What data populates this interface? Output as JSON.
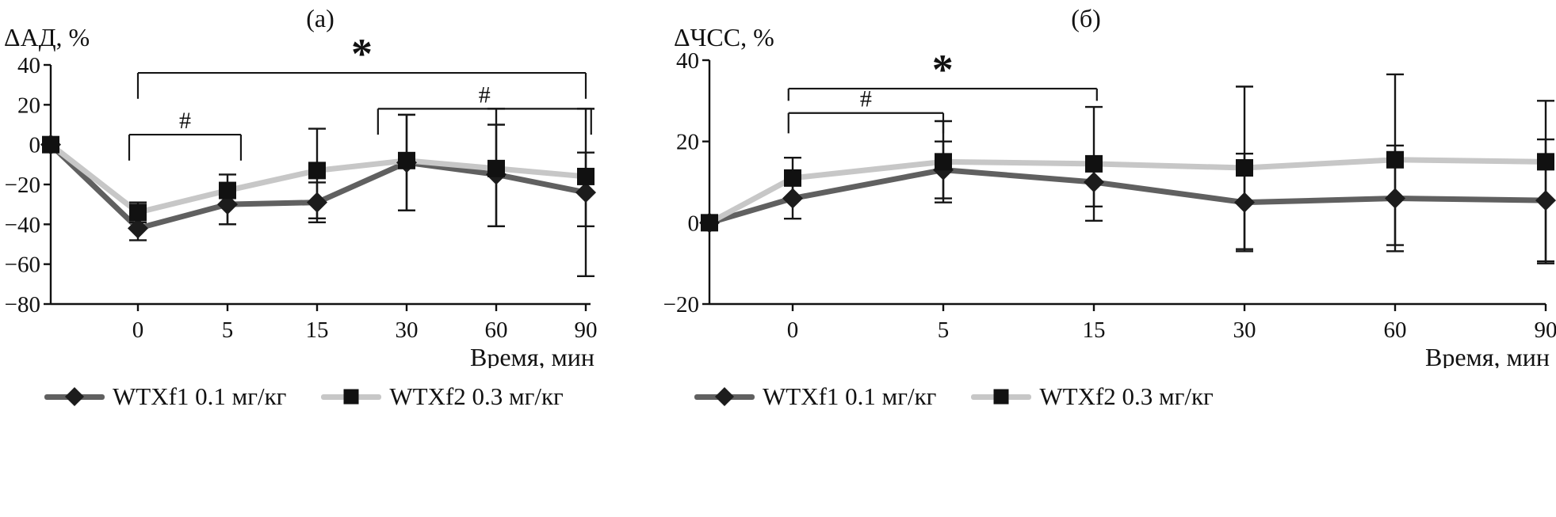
{
  "chart_data": [
    {
      "type": "line",
      "panel_label": "(а)",
      "y_axis_title": "ΔАД, %",
      "x_axis_title": "Время, мин",
      "ylim": [
        -80,
        40
      ],
      "yticks": [
        40,
        20,
        0,
        -20,
        -40,
        -60,
        -80
      ],
      "ytick_labels": [
        "40",
        "20",
        "0",
        "−20",
        "−40",
        "−60",
        "−80"
      ],
      "x_tick_labels": [
        "0",
        "5",
        "15",
        "30",
        "60",
        "90"
      ],
      "note": "first value of each series is the pre-injection baseline point plotted on the y-axis",
      "grid": false,
      "series": [
        {
          "name": "WTXf1 0.1 мг/кг",
          "marker": "diamond",
          "line_color": "#606060",
          "marker_color": "#1c1c1c",
          "values": [
            0,
            -42,
            -30,
            -29,
            -9,
            -15,
            -24
          ],
          "err_up": [
            0,
            5,
            10,
            10,
            24,
            25,
            20
          ],
          "err_down": [
            0,
            6,
            10,
            10,
            24,
            26,
            42
          ]
        },
        {
          "name": "WTXf2 0.3 мг/кг",
          "marker": "square",
          "line_color": "#c7c7c7",
          "marker_color": "#111111",
          "values": [
            0,
            -34,
            -23,
            -13,
            -8,
            -12,
            -16
          ],
          "err_up": [
            0,
            5,
            8,
            21,
            23,
            30,
            34
          ],
          "err_down": [
            0,
            5,
            17,
            24,
            25,
            29,
            25
          ]
        }
      ],
      "significance_brackets": [
        {
          "label": "#",
          "x1": 0.9,
          "x2": 2.15,
          "y": 5,
          "tick": 13
        },
        {
          "label": "#",
          "x1": 3.68,
          "x2": 6.06,
          "y": 18,
          "tick": 13
        },
        {
          "label": "*",
          "x1": 1.0,
          "x2": 6.0,
          "y": 36,
          "tick": 13
        }
      ]
    },
    {
      "type": "line",
      "panel_label": "(б)",
      "y_axis_title": "ΔЧСС, %",
      "x_axis_title": "Время, мин",
      "ylim": [
        -20,
        40
      ],
      "yticks": [
        40,
        20,
        0,
        -20
      ],
      "ytick_labels": [
        "40",
        "20",
        "0",
        "−20"
      ],
      "x_tick_labels": [
        "0",
        "5",
        "15",
        "30",
        "60",
        "90"
      ],
      "note": "first value of each series is the pre-injection baseline point plotted on the y-axis",
      "grid": false,
      "series": [
        {
          "name": "WTXf1 0.1 мг/кг",
          "marker": "diamond",
          "line_color": "#606060",
          "marker_color": "#1c1c1c",
          "values": [
            0,
            6,
            13,
            10,
            5,
            6,
            5.5
          ],
          "err_up": [
            0,
            5,
            7,
            6,
            12,
            13,
            15
          ],
          "err_down": [
            0,
            5,
            7,
            6,
            12,
            13,
            15
          ]
        },
        {
          "name": "WTXf2 0.3 мг/кг",
          "marker": "square",
          "line_color": "#c7c7c7",
          "marker_color": "#111111",
          "values": [
            0,
            11,
            15,
            14.5,
            13.5,
            15.5,
            15
          ],
          "err_up": [
            0,
            5,
            10,
            14,
            20,
            21,
            15
          ],
          "err_down": [
            0,
            5,
            10,
            14,
            20,
            21,
            25
          ]
        }
      ],
      "significance_brackets": [
        {
          "label": "#",
          "x1": 0.95,
          "x2": 2.0,
          "y": 27,
          "tick": 5
        },
        {
          "label": "*",
          "x1": 0.95,
          "x2": 3.02,
          "y": 33,
          "tick": 3
        }
      ]
    }
  ]
}
